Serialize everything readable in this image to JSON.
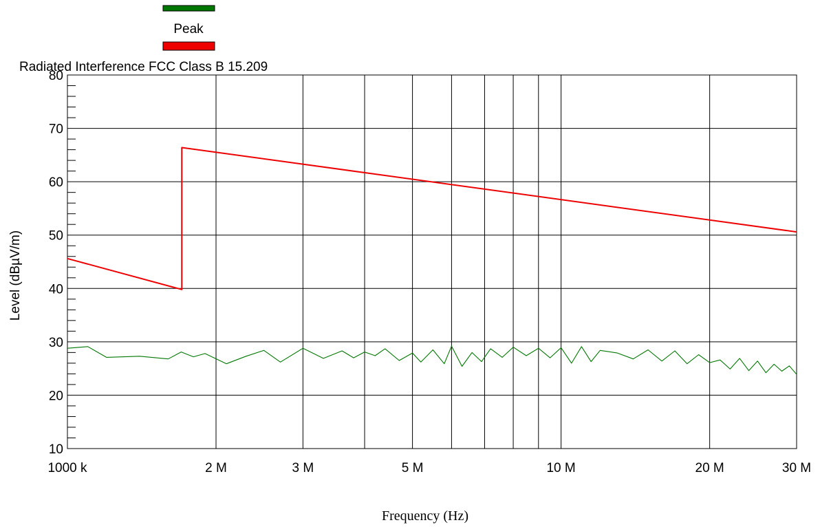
{
  "chart_data": {
    "type": "line",
    "x_scale": "log",
    "xlim": [
      1000000,
      30000000
    ],
    "ylim": [
      10,
      80
    ],
    "xlabel": "Frequency (Hz)",
    "ylabel": "Level (dBµV/m)",
    "x_ticks": [
      {
        "value": 1000000,
        "label": "1000 k"
      },
      {
        "value": 2000000,
        "label": "2 M"
      },
      {
        "value": 3000000,
        "label": "3 M"
      },
      {
        "value": 5000000,
        "label": "5 M"
      },
      {
        "value": 10000000,
        "label": "10 M"
      },
      {
        "value": 20000000,
        "label": "20 M"
      },
      {
        "value": 30000000,
        "label": "30 M"
      }
    ],
    "x_gridlines": [
      2000000,
      3000000,
      4000000,
      5000000,
      6000000,
      7000000,
      8000000,
      9000000,
      10000000,
      20000000
    ],
    "y_ticks": [
      {
        "value": 10,
        "label": "10"
      },
      {
        "value": 20,
        "label": "20"
      },
      {
        "value": 30,
        "label": "30"
      },
      {
        "value": 40,
        "label": "40"
      },
      {
        "value": 50,
        "label": "50"
      },
      {
        "value": 60,
        "label": "60"
      },
      {
        "value": 70,
        "label": "70"
      },
      {
        "value": 80,
        "label": "80"
      }
    ],
    "grid": true,
    "legend_position": "top-left",
    "series": [
      {
        "name": "Peak",
        "color": "#007700",
        "x": [
          1000000,
          1100000,
          1200000,
          1400000,
          1600000,
          1700000,
          1800000,
          1900000,
          2100000,
          2300000,
          2500000,
          2700000,
          3000000,
          3300000,
          3600000,
          3800000,
          4000000,
          4200000,
          4400000,
          4700000,
          5000000,
          5200000,
          5500000,
          5800000,
          6000000,
          6300000,
          6600000,
          6900000,
          7200000,
          7600000,
          8000000,
          8500000,
          9000000,
          9500000,
          10000000,
          10500000,
          11000000,
          11500000,
          12000000,
          13000000,
          14000000,
          15000000,
          16000000,
          17000000,
          18000000,
          19000000,
          20000000,
          21000000,
          22000000,
          23000000,
          24000000,
          25000000,
          26000000,
          27000000,
          28000000,
          29000000,
          30000000
        ],
        "y": [
          28.8,
          29.1,
          27.1,
          27.3,
          26.8,
          28.1,
          27.2,
          27.8,
          25.9,
          27.3,
          28.4,
          26.2,
          28.8,
          26.9,
          28.3,
          27.0,
          28.1,
          27.4,
          28.7,
          26.5,
          27.9,
          26.2,
          28.5,
          25.9,
          29.2,
          25.4,
          28.0,
          26.3,
          28.7,
          27.1,
          29.0,
          27.4,
          28.8,
          27.0,
          28.9,
          26.0,
          29.1,
          26.3,
          28.4,
          27.9,
          26.8,
          28.5,
          26.4,
          28.3,
          25.9,
          27.6,
          26.1,
          26.6,
          24.9,
          26.9,
          24.6,
          26.4,
          24.2,
          25.8,
          24.5,
          25.5,
          23.9
        ]
      },
      {
        "name": "Radiated Interference FCC Class B 15.209",
        "color": "#ee0000",
        "x": [
          1000000,
          1705000,
          1705000,
          30000000
        ],
        "y": [
          45.6,
          39.8,
          66.4,
          50.6
        ]
      }
    ]
  }
}
